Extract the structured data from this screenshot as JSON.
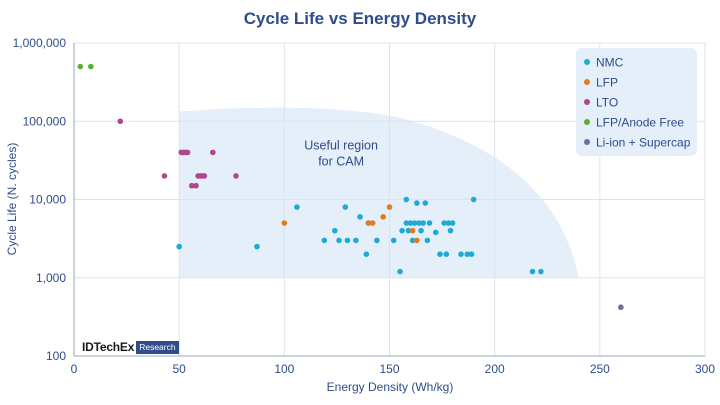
{
  "chart_data": {
    "type": "scatter",
    "title": "Cycle Life vs Energy Density",
    "xlabel": "Energy Density (Wh/kg)",
    "ylabel": "Cycle Life (N. cycles)",
    "xlim": [
      0,
      300
    ],
    "ylim": [
      100,
      1000000
    ],
    "yscale": "log",
    "x_ticks": [
      0,
      50,
      100,
      150,
      200,
      250,
      300
    ],
    "y_ticks": [
      100,
      1000,
      10000,
      100000,
      1000000
    ],
    "y_tick_labels": [
      "100",
      "1,000",
      "10,000",
      "100,000",
      "1,000,000"
    ],
    "grid": true,
    "legend_position": "top-right",
    "annotation": {
      "text_lines": [
        "Useful region",
        "for CAM"
      ],
      "region_x": [
        50,
        240
      ],
      "region_y": [
        1000,
        150000
      ]
    },
    "series": [
      {
        "name": "NMC",
        "color": "#1fa9d6",
        "points": [
          [
            50,
            2500
          ],
          [
            87,
            2500
          ],
          [
            106,
            8000
          ],
          [
            119,
            3000
          ],
          [
            124,
            4000
          ],
          [
            126,
            3000
          ],
          [
            129,
            8000
          ],
          [
            130,
            3000
          ],
          [
            134,
            3000
          ],
          [
            136,
            6000
          ],
          [
            139,
            2000
          ],
          [
            140,
            5000
          ],
          [
            144,
            3000
          ],
          [
            152,
            3000
          ],
          [
            155,
            1200
          ],
          [
            156,
            4000
          ],
          [
            158,
            10000
          ],
          [
            158,
            5000
          ],
          [
            159,
            4000
          ],
          [
            160,
            5000
          ],
          [
            161,
            3000
          ],
          [
            162,
            5000
          ],
          [
            163,
            9000
          ],
          [
            164,
            5000
          ],
          [
            165,
            4000
          ],
          [
            166,
            5000
          ],
          [
            167,
            9000
          ],
          [
            168,
            3000
          ],
          [
            169,
            5000
          ],
          [
            172,
            3800
          ],
          [
            174,
            2000
          ],
          [
            176,
            5000
          ],
          [
            177,
            2000
          ],
          [
            178,
            5000
          ],
          [
            179,
            4000
          ],
          [
            180,
            5000
          ],
          [
            184,
            2000
          ],
          [
            187,
            2000
          ],
          [
            189,
            2000
          ],
          [
            190,
            10000
          ],
          [
            218,
            1200
          ],
          [
            222,
            1200
          ]
        ]
      },
      {
        "name": "LFP",
        "color": "#e07b1f",
        "points": [
          [
            100,
            5000
          ],
          [
            140,
            5000
          ],
          [
            142,
            5000
          ],
          [
            147,
            6000
          ],
          [
            150,
            8000
          ],
          [
            161,
            4000
          ],
          [
            163,
            3000
          ]
        ]
      },
      {
        "name": "LTO",
        "color": "#b2458f",
        "points": [
          [
            22,
            100000
          ],
          [
            43,
            20000
          ],
          [
            51,
            40000
          ],
          [
            52,
            40000
          ],
          [
            53,
            40000
          ],
          [
            54,
            40000
          ],
          [
            56,
            15000
          ],
          [
            58,
            15000
          ],
          [
            59,
            20000
          ],
          [
            60,
            20000
          ],
          [
            61,
            20000
          ],
          [
            62,
            20000
          ],
          [
            66,
            40000
          ],
          [
            77,
            20000
          ]
        ]
      },
      {
        "name": "LFP/Anode Free",
        "color": "#5fae2f",
        "points": [
          [
            3,
            500000
          ],
          [
            8,
            500000
          ]
        ]
      },
      {
        "name": "Li-ion + Supercap",
        "color": "#6f6fa3",
        "points": [
          [
            260,
            420
          ]
        ]
      }
    ],
    "watermark": {
      "main": "IDTechEx",
      "sub": "Research"
    }
  }
}
